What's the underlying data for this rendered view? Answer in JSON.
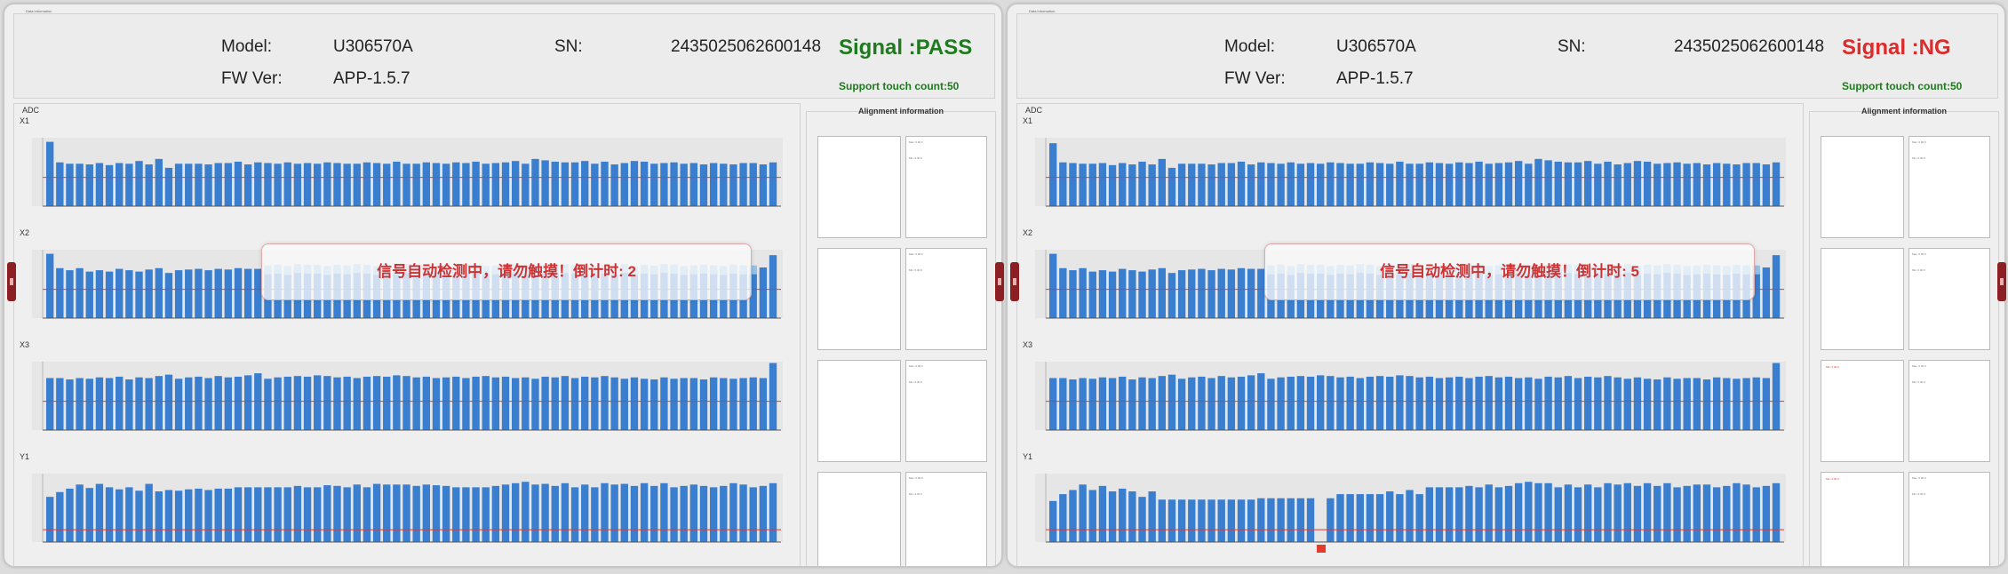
{
  "panels": [
    {
      "window_title": "Data information",
      "model_label": "Model:",
      "model": "U306570A",
      "fw_label": "FW Ver:",
      "fw": "APP-1.5.7",
      "sn_label": "SN:",
      "sn": "2435025062600148",
      "signal": "Signal :PASS",
      "signal_color": "#1f7a1f",
      "touch_count": "Support touch count:50",
      "adc_label": "ADC",
      "alignment_label": "Alignment information",
      "toast": "信号自动检测中，请勿触摸！倒计时: 2",
      "charts": [
        {
          "name": "X1",
          "type": "bar",
          "values": [
            94,
            64,
            62,
            62,
            61,
            63,
            60,
            63,
            62,
            66,
            61,
            69,
            56,
            62,
            62,
            62,
            61,
            63,
            63,
            65,
            61,
            64,
            63,
            62,
            64,
            62,
            63,
            62,
            64,
            63,
            62,
            62,
            64,
            63,
            62,
            65,
            62,
            62,
            64,
            63,
            62,
            64,
            63,
            65,
            62,
            63,
            64,
            66,
            62,
            69,
            67,
            65,
            64,
            64,
            66,
            62,
            65,
            61,
            63,
            66,
            65,
            62,
            63,
            64,
            62,
            63,
            61,
            63,
            62,
            61,
            63,
            63,
            61,
            64
          ]
        },
        {
          "name": "X2",
          "type": "bar",
          "values": [
            94,
            73,
            70,
            73,
            68,
            70,
            68,
            72,
            70,
            68,
            71,
            73,
            66,
            70,
            71,
            72,
            70,
            72,
            71,
            73,
            72,
            72,
            71,
            72,
            70,
            73,
            72,
            72,
            70,
            72,
            71,
            73,
            72,
            70,
            72,
            71,
            73,
            71,
            72,
            70,
            72,
            71,
            73,
            72,
            70,
            71,
            72,
            73,
            71,
            70,
            72,
            71,
            73,
            72,
            71,
            70,
            72,
            71,
            73,
            70,
            72,
            71,
            73,
            72,
            70,
            71,
            72,
            71,
            70,
            72,
            71,
            71,
            74,
            92
          ]
        },
        {
          "name": "X3",
          "type": "bar",
          "values": [
            76,
            76,
            74,
            76,
            75,
            77,
            76,
            78,
            74,
            77,
            76,
            79,
            81,
            75,
            77,
            78,
            76,
            79,
            77,
            78,
            80,
            83,
            75,
            77,
            78,
            79,
            78,
            80,
            79,
            77,
            78,
            76,
            78,
            79,
            78,
            80,
            79,
            77,
            78,
            76,
            77,
            78,
            76,
            78,
            79,
            77,
            78,
            76,
            77,
            75,
            78,
            77,
            79,
            76,
            78,
            77,
            79,
            77,
            75,
            77,
            75,
            74,
            77,
            75,
            76,
            76,
            74,
            77,
            76,
            75,
            76,
            77,
            76,
            98
          ]
        },
        {
          "name": "Y1",
          "type": "bar",
          "values": [
            66,
            73,
            78,
            84,
            79,
            85,
            80,
            77,
            80,
            75,
            85,
            74,
            76,
            75,
            77,
            78,
            76,
            78,
            78,
            80,
            80,
            80,
            80,
            80,
            80,
            82,
            80,
            80,
            83,
            82,
            80,
            84,
            80,
            85,
            84,
            84,
            84,
            82,
            84,
            83,
            82,
            80,
            80,
            80,
            80,
            82,
            84,
            86,
            88,
            84,
            85,
            82,
            86,
            80,
            84,
            80,
            86,
            84,
            85,
            82,
            86,
            82,
            86,
            80,
            82,
            84,
            82,
            80,
            82,
            86,
            84,
            80,
            82,
            86
          ]
        }
      ],
      "thresholds": [
        42,
        42,
        42,
        18
      ],
      "alignment_captions": [
        "Max: 0.00 0",
        "Min: 0.00 0"
      ],
      "ng_markers": []
    },
    {
      "window_title": "Data information",
      "model_label": "Model:",
      "model": "U306570A",
      "fw_label": "FW Ver:",
      "fw": "APP-1.5.7",
      "sn_label": "SN:",
      "sn": "2435025062600148",
      "signal": "Signal :NG",
      "signal_color": "#dd2a2a",
      "touch_count": "Support touch count:50",
      "adc_label": "ADC",
      "alignment_label": "Alignment information",
      "toast": "信号自动检测中，请勿触摸！倒计时: 5",
      "charts": [
        {
          "name": "X1",
          "type": "bar",
          "values": [
            92,
            64,
            63,
            62,
            62,
            63,
            60,
            63,
            61,
            65,
            61,
            69,
            56,
            62,
            62,
            62,
            61,
            63,
            63,
            65,
            61,
            64,
            63,
            62,
            64,
            62,
            63,
            62,
            64,
            63,
            62,
            62,
            64,
            63,
            62,
            65,
            62,
            62,
            64,
            63,
            62,
            64,
            63,
            65,
            62,
            63,
            64,
            66,
            62,
            69,
            67,
            65,
            64,
            64,
            66,
            62,
            65,
            61,
            63,
            66,
            65,
            62,
            63,
            64,
            62,
            63,
            61,
            63,
            62,
            61,
            63,
            63,
            61,
            64
          ]
        },
        {
          "name": "X2",
          "type": "bar",
          "values": [
            94,
            73,
            70,
            73,
            68,
            70,
            68,
            72,
            70,
            68,
            71,
            73,
            66,
            70,
            71,
            72,
            70,
            72,
            71,
            73,
            72,
            72,
            71,
            72,
            70,
            73,
            72,
            72,
            70,
            72,
            71,
            73,
            72,
            70,
            72,
            71,
            73,
            71,
            72,
            70,
            72,
            71,
            73,
            72,
            70,
            71,
            72,
            73,
            71,
            70,
            72,
            71,
            73,
            72,
            71,
            70,
            72,
            71,
            73,
            70,
            72,
            71,
            73,
            72,
            70,
            71,
            72,
            71,
            70,
            72,
            71,
            71,
            74,
            92
          ]
        },
        {
          "name": "X3",
          "type": "bar",
          "values": [
            76,
            76,
            74,
            76,
            75,
            77,
            76,
            78,
            74,
            77,
            76,
            79,
            81,
            75,
            77,
            78,
            76,
            79,
            77,
            78,
            80,
            83,
            75,
            77,
            78,
            79,
            78,
            80,
            79,
            77,
            78,
            76,
            78,
            79,
            78,
            80,
            79,
            77,
            78,
            76,
            77,
            78,
            76,
            78,
            79,
            77,
            78,
            76,
            77,
            75,
            78,
            77,
            79,
            76,
            78,
            77,
            79,
            77,
            75,
            77,
            75,
            74,
            77,
            75,
            76,
            76,
            74,
            77,
            76,
            75,
            76,
            77,
            76,
            98
          ]
        },
        {
          "name": "Y1",
          "type": "bar",
          "values": [
            60,
            70,
            76,
            84,
            76,
            82,
            74,
            78,
            74,
            66,
            74,
            62,
            62,
            62,
            62,
            62,
            62,
            62,
            62,
            62,
            62,
            64,
            64,
            64,
            64,
            64,
            64,
            0,
            64,
            70,
            70,
            70,
            70,
            70,
            74,
            70,
            76,
            70,
            80,
            80,
            80,
            80,
            82,
            80,
            84,
            80,
            82,
            86,
            88,
            86,
            86,
            80,
            84,
            80,
            84,
            80,
            86,
            84,
            86,
            82,
            86,
            82,
            86,
            80,
            82,
            84,
            84,
            80,
            82,
            86,
            84,
            80,
            82,
            86
          ]
        }
      ],
      "thresholds": [
        42,
        42,
        42,
        18
      ],
      "alignment_captions": [
        "Max: 0.00 0",
        "Min: 0.00 0"
      ],
      "ng_markers": [
        3
      ]
    }
  ],
  "colors": {
    "bar": "#3a7fcf",
    "bar_overlay": "#93c1e8",
    "threshold": "#d83a3a",
    "axis": "#555555",
    "ng": "#e33b2e"
  }
}
